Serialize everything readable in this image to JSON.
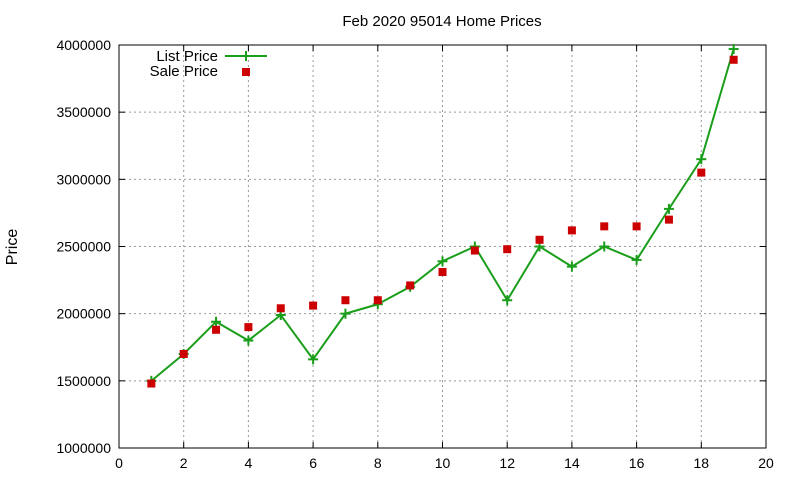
{
  "chart_data": {
    "type": "line",
    "title": "Feb 2020 95014 Home Prices",
    "xlabel": "",
    "ylabel": "Price",
    "xlim": [
      0,
      20
    ],
    "ylim": [
      1000000,
      4000000
    ],
    "xticks": [
      0,
      2,
      4,
      6,
      8,
      10,
      12,
      14,
      16,
      18,
      20
    ],
    "yticks": [
      1000000,
      1500000,
      2000000,
      2500000,
      3000000,
      3500000,
      4000000
    ],
    "grid": true,
    "legend_position": "top-left",
    "series": [
      {
        "name": "List Price",
        "style": "line-with-plus-markers",
        "color": "#1a9e1a",
        "points": [
          [
            1,
            1500000
          ],
          [
            2,
            1700000
          ],
          [
            3,
            1940000
          ],
          [
            4,
            1800000
          ],
          [
            5,
            1990000
          ],
          [
            6,
            1660000
          ],
          [
            7,
            2000000
          ],
          [
            8,
            2070000
          ],
          [
            9,
            2200000
          ],
          [
            10,
            2390000
          ],
          [
            11,
            2500000
          ],
          [
            12,
            2100000
          ],
          [
            13,
            2500000
          ],
          [
            14,
            2350000
          ],
          [
            15,
            2500000
          ],
          [
            16,
            2400000
          ],
          [
            17,
            2780000
          ],
          [
            18,
            3150000
          ],
          [
            19,
            3970000
          ]
        ]
      },
      {
        "name": "Sale Price",
        "style": "square-markers",
        "color": "#cc0000",
        "points": [
          [
            1,
            1480000
          ],
          [
            2,
            1700000
          ],
          [
            3,
            1880000
          ],
          [
            4,
            1900000
          ],
          [
            5,
            2040000
          ],
          [
            6,
            2060000
          ],
          [
            7,
            2100000
          ],
          [
            8,
            2100000
          ],
          [
            9,
            2210000
          ],
          [
            10,
            2310000
          ],
          [
            11,
            2470000
          ],
          [
            12,
            2480000
          ],
          [
            13,
            2550000
          ],
          [
            14,
            2620000
          ],
          [
            15,
            2650000
          ],
          [
            16,
            2650000
          ],
          [
            17,
            2700000
          ],
          [
            18,
            3050000
          ],
          [
            19,
            3890000
          ]
        ]
      }
    ]
  }
}
